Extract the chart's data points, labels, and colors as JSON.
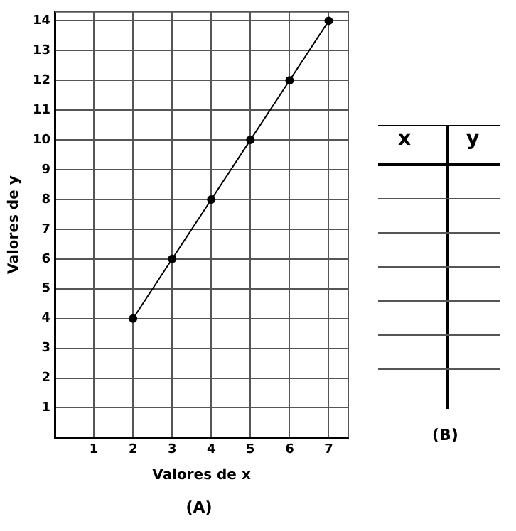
{
  "chart_data": [
    {
      "type": "line",
      "xlabel": "Valores de x",
      "ylabel": "Valores de y",
      "annotations": [
        "(A)"
      ],
      "x": [
        2,
        3,
        4,
        5,
        6,
        7
      ],
      "series": [
        {
          "color": "#000000",
          "values": [
            4,
            6,
            8,
            10,
            12,
            14
          ]
        }
      ],
      "xlim": [
        0,
        7.5
      ],
      "xticks": [
        {
          "value": 0,
          "label": null
        },
        1,
        2,
        3,
        4,
        5,
        6,
        7
      ],
      "ylim": [
        0,
        14.3
      ],
      "yticks": [
        {
          "value": 0,
          "label": null
        },
        1,
        2,
        3,
        4,
        5,
        6,
        7,
        8,
        9,
        10,
        11,
        12,
        13,
        14
      ],
      "grid": true,
      "marker": "circle",
      "line_style": "solid",
      "legend": false
    },
    {
      "type": "other",
      "title": "(B)",
      "categories": [
        "x",
        "y"
      ]
    }
  ]
}
